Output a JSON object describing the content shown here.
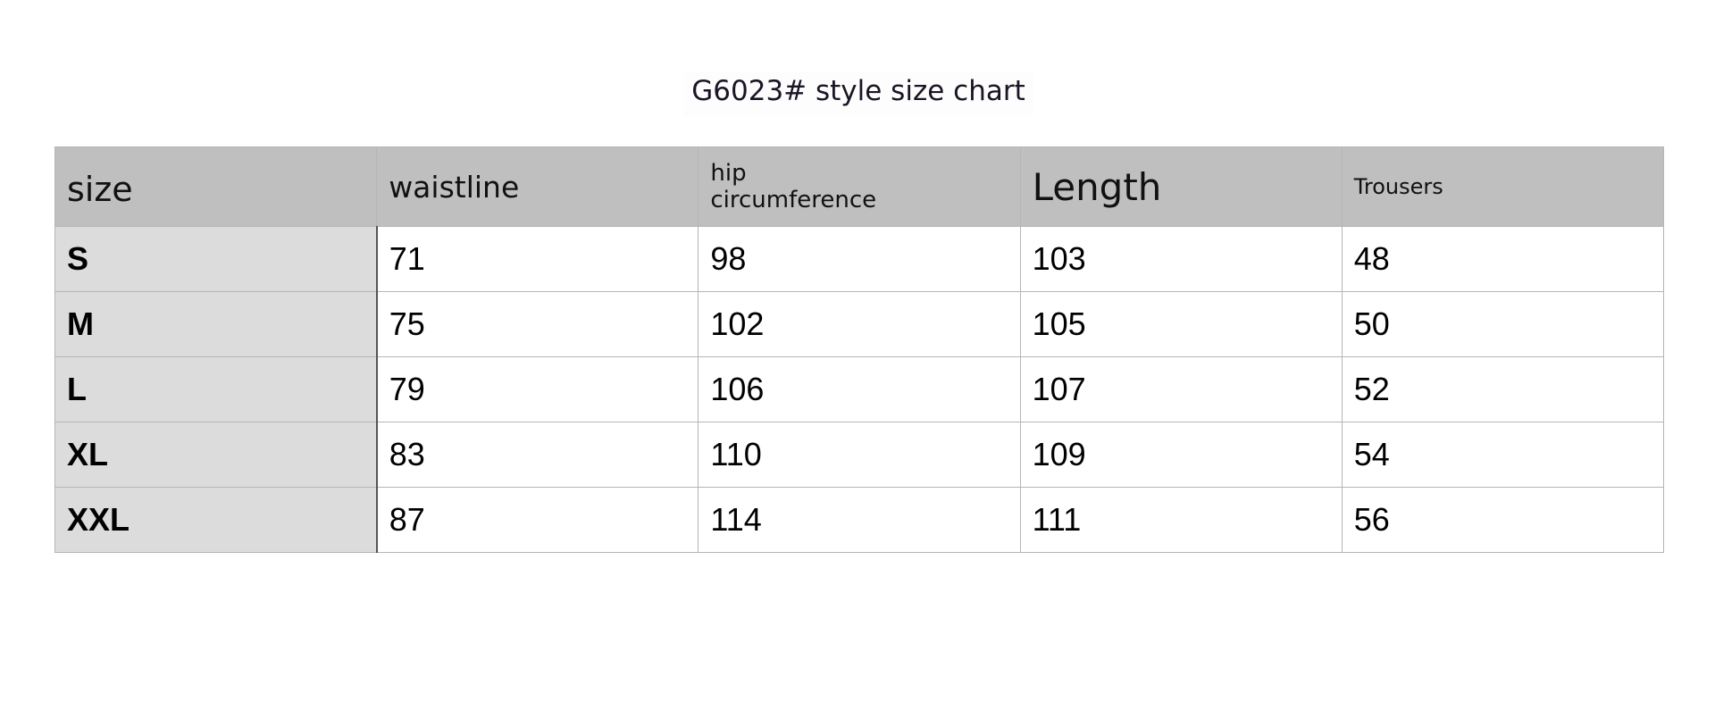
{
  "title": "G6023# style size chart",
  "table": {
    "headers": [
      "size",
      "waistline",
      "hip circumference",
      "Length",
      "Trousers"
    ],
    "rows": [
      [
        "S",
        "71",
        "98",
        "103",
        "48"
      ],
      [
        "M",
        "75",
        "102",
        "105",
        "50"
      ],
      [
        "L",
        "79",
        "106",
        "107",
        "52"
      ],
      [
        "XL",
        "83",
        "110",
        "109",
        "54"
      ],
      [
        "XXL",
        "87",
        "114",
        "111",
        "56"
      ]
    ]
  },
  "colors": {
    "header_bg": "#bebfbe",
    "size_col_bg": "#dcdcdc"
  }
}
